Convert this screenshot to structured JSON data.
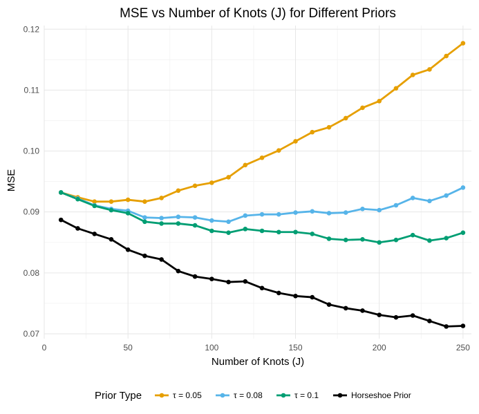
{
  "chart_data": {
    "type": "line",
    "title": "MSE vs Number of Knots (J) for Different Priors",
    "xlabel": "Number of Knots (J)",
    "ylabel": "MSE",
    "xlim": [
      0,
      255
    ],
    "ylim": [
      0.0692,
      0.1206
    ],
    "x_ticks": [
      0,
      50,
      100,
      150,
      200,
      250
    ],
    "y_ticks": [
      0.07,
      0.08,
      0.09,
      0.1,
      0.11,
      0.12
    ],
    "y_tick_labels": [
      "0.07",
      "0.08",
      "0.09",
      "0.10",
      "0.11",
      "0.12"
    ],
    "grid": true,
    "legend_title": "Prior Type",
    "legend_position": "bottom",
    "x": [
      10,
      20,
      30,
      40,
      50,
      60,
      70,
      80,
      90,
      100,
      110,
      120,
      130,
      140,
      150,
      160,
      170,
      180,
      190,
      200,
      210,
      220,
      230,
      240,
      250
    ],
    "series": [
      {
        "name": "τ = 0.05",
        "color": "#E69F00",
        "values": [
          0.0932,
          0.0924,
          0.0917,
          0.0917,
          0.092,
          0.0917,
          0.0923,
          0.0935,
          0.0943,
          0.0948,
          0.0957,
          0.0977,
          0.0989,
          0.1001,
          0.1016,
          0.1031,
          0.1039,
          0.1054,
          0.1071,
          0.1082,
          0.1103,
          0.1125,
          0.1134,
          0.1156,
          0.1177
        ]
      },
      {
        "name": "τ = 0.08",
        "color": "#56B4E9",
        "values": [
          0.0932,
          0.0922,
          0.0911,
          0.0905,
          0.0902,
          0.0891,
          0.089,
          0.0892,
          0.0891,
          0.0886,
          0.0884,
          0.0894,
          0.0896,
          0.0896,
          0.0899,
          0.0901,
          0.0898,
          0.0899,
          0.0905,
          0.0903,
          0.0911,
          0.0923,
          0.0918,
          0.0927,
          0.094
        ]
      },
      {
        "name": "τ = 0.1",
        "color": "#009E73",
        "values": [
          0.0932,
          0.0921,
          0.091,
          0.0903,
          0.0898,
          0.0884,
          0.0881,
          0.0881,
          0.0878,
          0.0869,
          0.0866,
          0.0872,
          0.0869,
          0.0867,
          0.0867,
          0.0864,
          0.0856,
          0.0854,
          0.0855,
          0.085,
          0.0854,
          0.0862,
          0.0853,
          0.0857,
          0.0866
        ]
      },
      {
        "name": "Horseshoe Prior",
        "color": "#000000",
        "values": [
          0.0887,
          0.0873,
          0.0864,
          0.0855,
          0.0838,
          0.0828,
          0.0822,
          0.0803,
          0.0794,
          0.079,
          0.0785,
          0.0786,
          0.0775,
          0.0767,
          0.0762,
          0.076,
          0.0748,
          0.0742,
          0.0738,
          0.0731,
          0.0727,
          0.073,
          0.0721,
          0.0712,
          0.0713
        ]
      }
    ]
  }
}
